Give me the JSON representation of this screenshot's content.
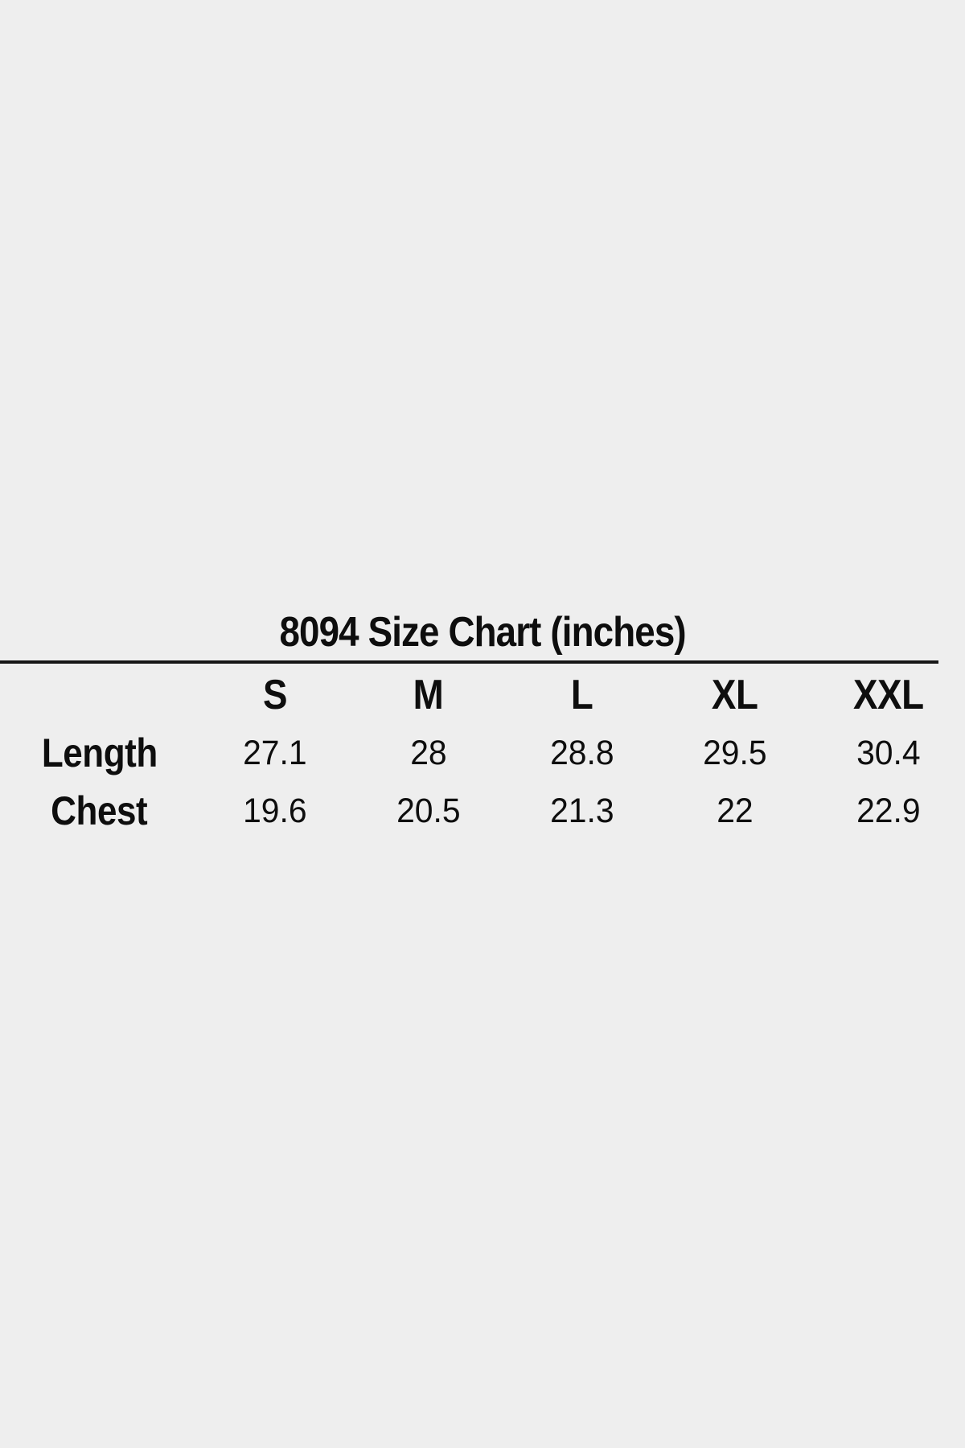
{
  "page": {
    "background_color": "#eeeeee",
    "text_color": "#0e0e0e",
    "divider_color": "#161616"
  },
  "size_chart": {
    "title": "8094 Size Chart (inches)",
    "columns": [
      "S",
      "M",
      "L",
      "XL",
      "XXL"
    ],
    "rows": [
      {
        "label": "Length",
        "values": [
          "27.1",
          "28",
          "28.8",
          "29.5",
          "30.4"
        ]
      },
      {
        "label": "Chest",
        "values": [
          "19.6",
          "20.5",
          "21.3",
          "22",
          "22.9"
        ]
      }
    ]
  },
  "chart_data": {
    "type": "table",
    "title": "8094 Size Chart (inches)",
    "units": "inches",
    "columns": [
      "S",
      "M",
      "L",
      "XL",
      "XXL"
    ],
    "rows": [
      {
        "label": "Length",
        "values": [
          27.1,
          28,
          28.8,
          29.5,
          30.4
        ]
      },
      {
        "label": "Chest",
        "values": [
          19.6,
          20.5,
          21.3,
          22,
          22.9
        ]
      }
    ]
  }
}
